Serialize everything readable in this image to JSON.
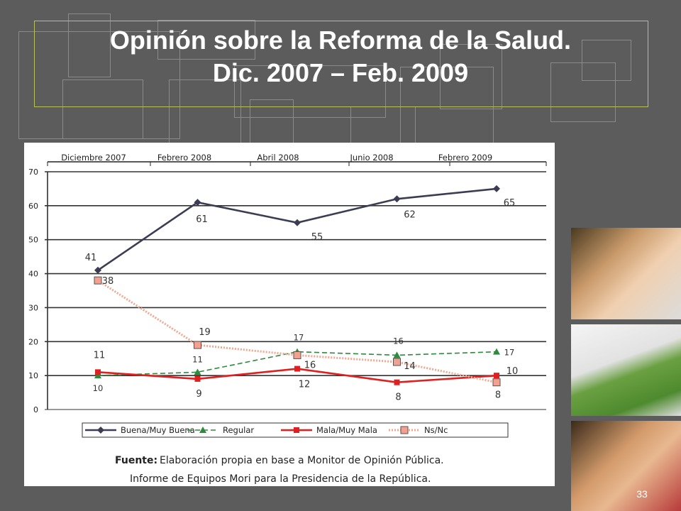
{
  "slide": {
    "title_line1": "Opinión sobre la Reforma de la Salud.",
    "title_line2": "Dic. 2007 – Feb. 2009",
    "page_number": "33"
  },
  "chart_data": {
    "type": "line",
    "categories": [
      "Diciembre 2007",
      "Febrero 2008",
      "Abril 2008",
      "Junio 2008",
      "Febrero 2009"
    ],
    "ylim": [
      0,
      70
    ],
    "yticks": [
      0,
      10,
      20,
      30,
      40,
      50,
      60,
      70
    ],
    "grid": true,
    "legend_position": "bottom",
    "series": [
      {
        "name": "Buena/Muy Buena",
        "values": [
          41,
          61,
          55,
          62,
          65
        ],
        "color": "#3c3c52",
        "marker": "diamond",
        "dash": "solid",
        "labels": [
          "41",
          "61",
          "55",
          "62",
          "65"
        ]
      },
      {
        "name": "Regular",
        "values": [
          10,
          11,
          17,
          16,
          17
        ],
        "color": "#2e8b3e",
        "marker": "triangle",
        "dash": "dashed",
        "labels": [
          "10",
          "11",
          "17",
          "16",
          "17"
        ]
      },
      {
        "name": "Mala/Muy Mala",
        "values": [
          11,
          9,
          12,
          8,
          10
        ],
        "color": "#e02020",
        "marker": "square",
        "dash": "solid",
        "labels": [
          "11",
          "9",
          "12",
          "8",
          "10"
        ]
      },
      {
        "name": "Ns/Nc",
        "values": [
          38,
          19,
          16,
          14,
          8
        ],
        "color": "#f0a890",
        "marker": "square-outline",
        "dash": "dotted",
        "labels": [
          "38",
          "19",
          "16",
          "14",
          "8"
        ]
      }
    ],
    "source_label": "Fuente:",
    "source_line1": "Elaboración propia en base a Monitor de Opinión Pública.",
    "source_line2": "Informe de Equipos Mori para la Presidencia de la República."
  }
}
